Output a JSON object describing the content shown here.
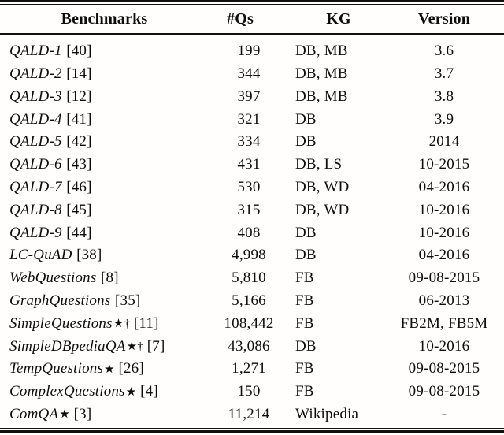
{
  "table": {
    "headers": [
      "Benchmarks",
      "#Qs",
      "KG",
      "Version"
    ],
    "rows": [
      {
        "name": "QALD-1",
        "marker": "",
        "cite": "[40]",
        "qs": "199",
        "kg": "DB, MB",
        "version": "3.6"
      },
      {
        "name": "QALD-2",
        "marker": "",
        "cite": "[14]",
        "qs": "344",
        "kg": "DB, MB",
        "version": "3.7"
      },
      {
        "name": "QALD-3",
        "marker": "",
        "cite": "[12]",
        "qs": "397",
        "kg": "DB, MB",
        "version": "3.8"
      },
      {
        "name": "QALD-4",
        "marker": "",
        "cite": "[41]",
        "qs": "321",
        "kg": "DB",
        "version": "3.9"
      },
      {
        "name": "QALD-5",
        "marker": "",
        "cite": "[42]",
        "qs": "334",
        "kg": "DB",
        "version": "2014"
      },
      {
        "name": "QALD-6",
        "marker": "",
        "cite": "[43]",
        "qs": "431",
        "kg": "DB, LS",
        "version": "10-2015"
      },
      {
        "name": "QALD-7",
        "marker": "",
        "cite": "[46]",
        "qs": "530",
        "kg": "DB, WD",
        "version": "04-2016"
      },
      {
        "name": "QALD-8",
        "marker": "",
        "cite": "[45]",
        "qs": "315",
        "kg": "DB, WD",
        "version": "10-2016"
      },
      {
        "name": "QALD-9",
        "marker": "",
        "cite": "[44]",
        "qs": "408",
        "kg": "DB",
        "version": "10-2016"
      },
      {
        "name": "LC-QuAD",
        "marker": "",
        "cite": "[38]",
        "qs": "4,998",
        "kg": "DB",
        "version": "04-2016"
      },
      {
        "name": "WebQuestions",
        "marker": "",
        "cite": "[8]",
        "qs": "5,810",
        "kg": "FB",
        "version": "09-08-2015"
      },
      {
        "name": "GraphQuestions",
        "marker": "",
        "cite": "[35]",
        "qs": "5,166",
        "kg": "FB",
        "version": "06-2013"
      },
      {
        "name": "SimpleQuestions",
        "marker": "★†",
        "cite": "[11]",
        "qs": "108,442",
        "kg": "FB",
        "version": "FB2M, FB5M"
      },
      {
        "name": "SimpleDBpediaQA",
        "marker": "★†",
        "cite": "[7]",
        "qs": "43,086",
        "kg": "DB",
        "version": "10-2016"
      },
      {
        "name": "TempQuestions",
        "marker": "★",
        "cite": "[26]",
        "qs": "1,271",
        "kg": "FB",
        "version": "09-08-2015"
      },
      {
        "name": "ComplexQuestions",
        "marker": "★",
        "cite": "[4]",
        "qs": "150",
        "kg": "FB",
        "version": "09-08-2015"
      },
      {
        "name": "ComQA",
        "marker": "★",
        "cite": "[3]",
        "qs": "11,214",
        "kg": "Wikipedia",
        "version": "-"
      }
    ]
  }
}
